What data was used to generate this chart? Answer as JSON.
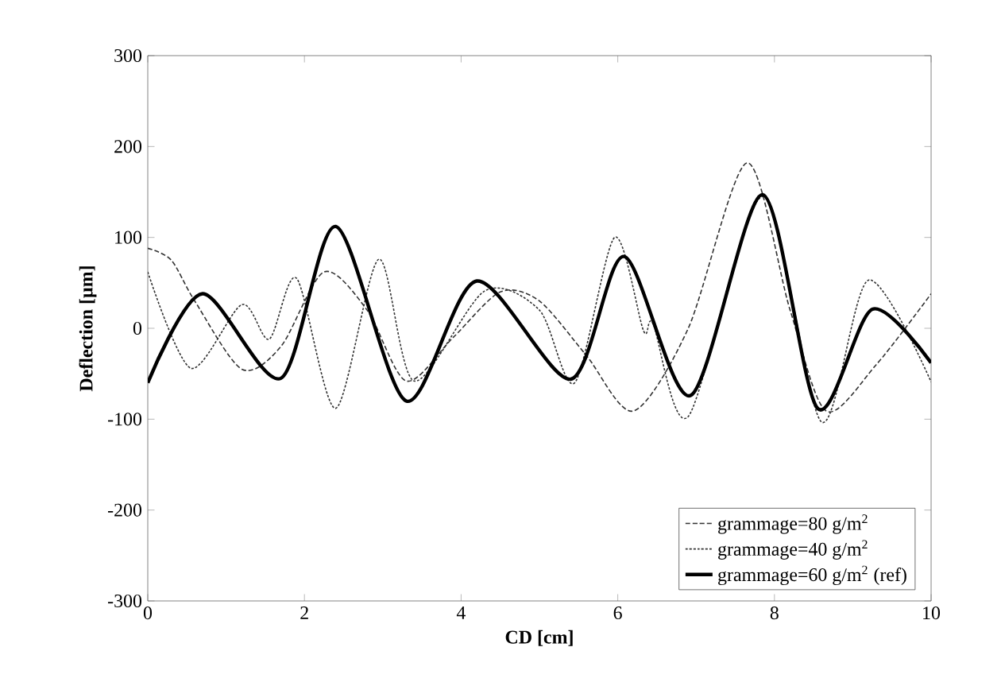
{
  "chart_data": {
    "type": "line",
    "xlabel": "CD [cm]",
    "ylabel": "Deflection [µm]",
    "xlim": [
      0,
      10
    ],
    "ylim": [
      -300,
      300
    ],
    "xticks": [
      0,
      2,
      4,
      6,
      8,
      10
    ],
    "yticks": [
      -300,
      -200,
      -100,
      0,
      100,
      200,
      300
    ],
    "grid": false,
    "legend": "bottom right",
    "series": [
      {
        "name": "grammage=80 g/m$^{2}$",
        "color": "#333333",
        "line_style": "dashed",
        "x": [
          0,
          0.3,
          0.6,
          1.2,
          1.7,
          2.25,
          2.8,
          3.3,
          3.9,
          4.5,
          5.0,
          5.6,
          6.2,
          6.9,
          7.65,
          8.2,
          8.66,
          9.3,
          10
        ],
        "values": [
          88,
          75,
          30,
          -45,
          -20,
          62,
          20,
          -58,
          -10,
          40,
          30,
          -30,
          -91,
          0,
          182,
          20,
          -91,
          -40,
          38
        ]
      },
      {
        "name": "grammage=40 g/m$^{2}$",
        "color": "#333333",
        "line_style": "dotted",
        "x": [
          0,
          0.55,
          1.2,
          1.55,
          1.9,
          2.4,
          2.95,
          3.4,
          4.3,
          5.0,
          5.45,
          5.96,
          6.33,
          6.45,
          6.9,
          7.85,
          8.6,
          9.2,
          10
        ],
        "values": [
          62,
          -44,
          26,
          -12,
          55,
          -88,
          76,
          -58,
          41,
          20,
          -60,
          100,
          -3,
          5,
          -97,
          145,
          -103,
          53,
          -59
        ]
      },
      {
        "name": "grammage=60 g/m$^{2}$ (ref)",
        "color": "#000000",
        "line_style": "solid",
        "x": [
          0,
          0.7,
          1.7,
          2.4,
          3.3,
          4.2,
          5.4,
          6.08,
          6.93,
          7.85,
          8.55,
          9.25,
          10
        ],
        "values": [
          -60,
          38,
          -55,
          112,
          -80,
          52,
          -56,
          79,
          -74,
          147,
          -88,
          21,
          -38
        ]
      }
    ]
  }
}
